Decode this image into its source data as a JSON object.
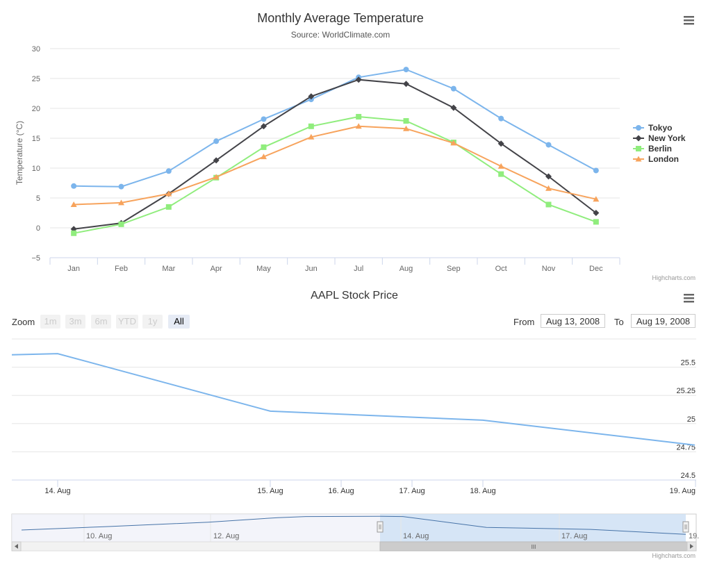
{
  "chart_data": [
    {
      "type": "line",
      "title": "Monthly Average Temperature",
      "subtitle": "Source: WorldClimate.com",
      "xlabel": "",
      "ylabel": "Temperature (°C)",
      "categories": [
        "Jan",
        "Feb",
        "Mar",
        "Apr",
        "May",
        "Jun",
        "Jul",
        "Aug",
        "Sep",
        "Oct",
        "Nov",
        "Dec"
      ],
      "ylim": [
        -5,
        30
      ],
      "yticks": [
        "−5",
        "0",
        "5",
        "10",
        "15",
        "20",
        "25",
        "30"
      ],
      "grid": true,
      "legend_position": "right",
      "series": [
        {
          "name": "Tokyo",
          "marker": "circle",
          "color": "#7cb5ec",
          "values": [
            7.0,
            6.9,
            9.5,
            14.5,
            18.2,
            21.5,
            25.2,
            26.5,
            23.3,
            18.3,
            13.9,
            9.6
          ]
        },
        {
          "name": "New York",
          "marker": "diamond",
          "color": "#434348",
          "values": [
            -0.2,
            0.8,
            5.7,
            11.3,
            17.0,
            22.0,
            24.8,
            24.1,
            20.1,
            14.1,
            8.6,
            2.5
          ]
        },
        {
          "name": "Berlin",
          "marker": "square",
          "color": "#90ed7d",
          "values": [
            -0.9,
            0.6,
            3.5,
            8.4,
            13.5,
            17.0,
            18.6,
            17.9,
            14.3,
            9.0,
            3.9,
            1.0
          ]
        },
        {
          "name": "London",
          "marker": "triangle",
          "color": "#f7a35c",
          "values": [
            3.9,
            4.2,
            5.7,
            8.5,
            11.9,
            15.2,
            17.0,
            16.6,
            14.2,
            10.3,
            6.6,
            4.8
          ]
        }
      ],
      "credits": "Highcharts.com"
    },
    {
      "type": "line",
      "title": "AAPL Stock Price",
      "xlabel": "",
      "ylabel": "",
      "x": [
        "2008-08-13",
        "2008-08-14",
        "2008-08-15",
        "2008-08-18",
        "2008-08-19"
      ],
      "xticks": [
        "14. Aug",
        "15. Aug",
        "16. Aug",
        "17. Aug",
        "18. Aug",
        "19. Aug"
      ],
      "ylim": [
        24.5,
        25.75
      ],
      "yticks": [
        "24.5",
        "24.75",
        "25",
        "25.25",
        "25.5"
      ],
      "grid": true,
      "series": [
        {
          "name": "AAPL",
          "color": "#7cb5ec",
          "values": [
            25.61,
            25.62,
            25.11,
            25.03,
            24.81
          ]
        }
      ],
      "navigator": {
        "xticks": [
          "10. Aug",
          "12. Aug",
          "14. Aug",
          "17. Aug",
          "19."
        ],
        "selected_range": [
          "Aug 13, 2008",
          "Aug 19, 2008"
        ]
      },
      "credits": "Highcharts.com"
    }
  ],
  "range_selector": {
    "zoom_label": "Zoom",
    "buttons": [
      "1m",
      "3m",
      "6m",
      "YTD",
      "1y",
      "All"
    ],
    "active": "All",
    "from_label": "From",
    "from_value": "Aug 13, 2008",
    "to_label": "To",
    "to_value": "Aug 19, 2008"
  },
  "scrollbar_grip": "III"
}
